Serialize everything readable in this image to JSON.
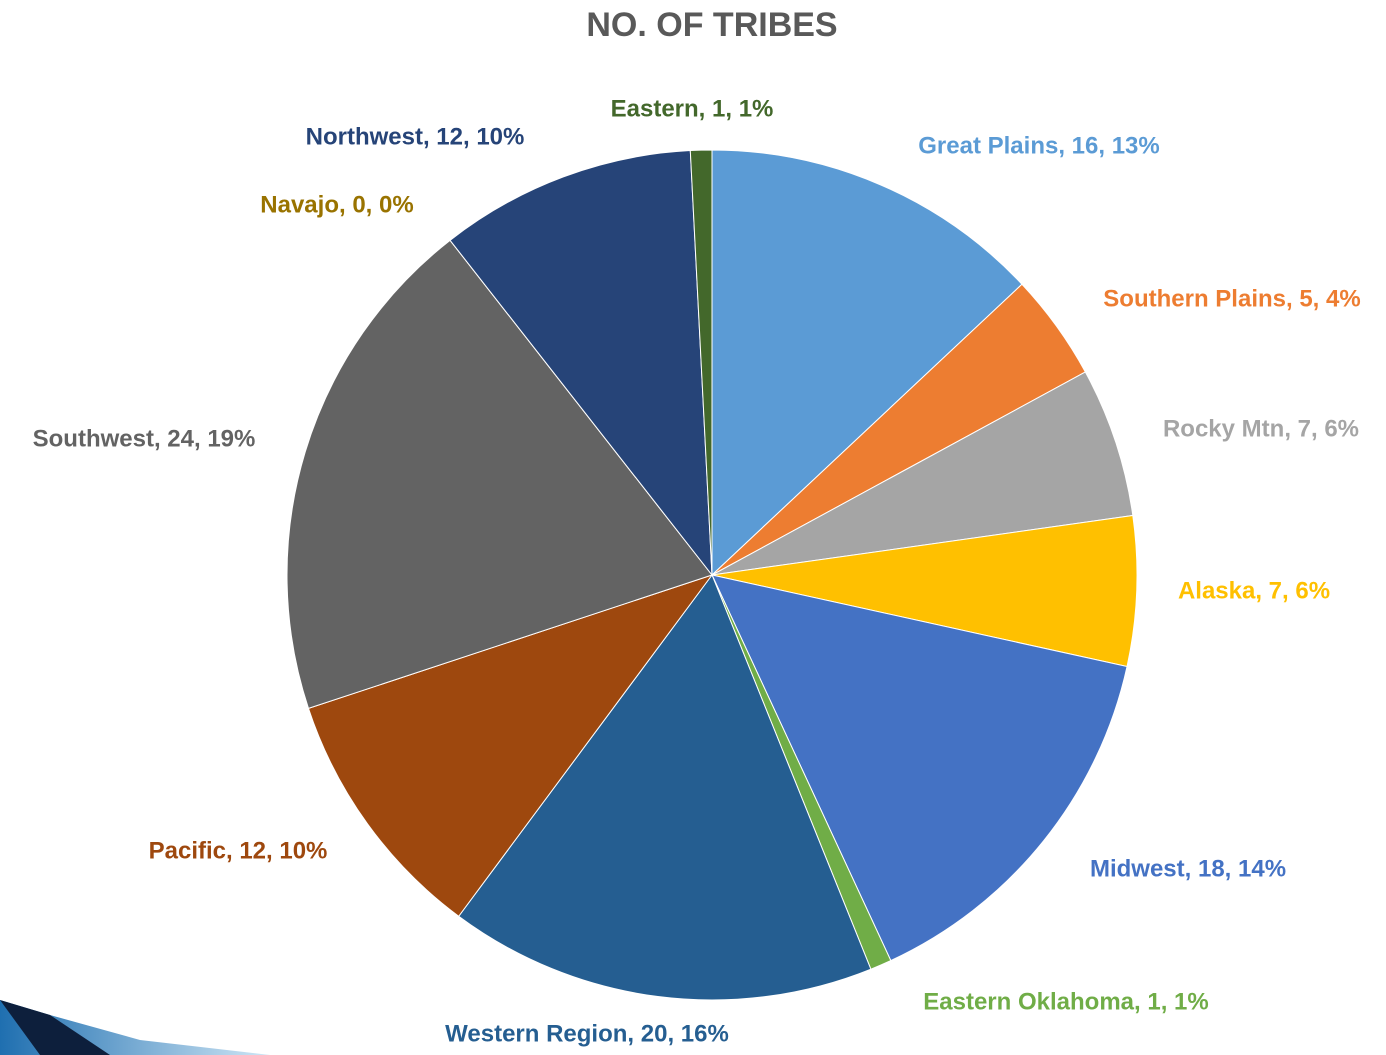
{
  "chart_data": {
    "type": "pie",
    "title": "NO. OF TRIBES",
    "values": [
      16,
      5,
      7,
      7,
      18,
      1,
      20,
      12,
      24,
      0,
      12,
      1
    ],
    "value_labels": [
      "Great Plains, 16, 13%",
      "Southern Plains, 5, 4%",
      "Rocky Mtn, 7, 6%",
      "Alaska, 7, 6%",
      "Midwest, 18, 14%",
      "Eastern Oklahoma, 1, 1%",
      "Western Region, 20, 16%",
      "Pacific, 12, 10%",
      "Southwest, 24, 19%",
      "Navajo, 0, 0%",
      "Northwest, 12, 10%",
      "Eastern, 1, 1%"
    ],
    "colors": [
      "#5b9bd5",
      "#ed7d31",
      "#a5a5a5",
      "#ffc000",
      "#4472c4",
      "#70ad47",
      "#255e91",
      "#9e480e",
      "#636363",
      "#997300",
      "#264478",
      "#43682b"
    ]
  }
}
